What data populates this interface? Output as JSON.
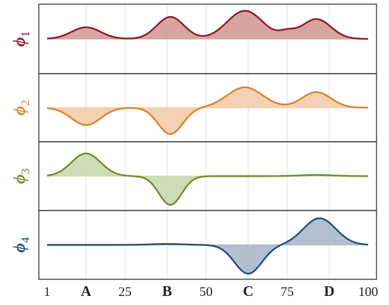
{
  "chart_data": {
    "type": "area",
    "x_range": [
      1,
      100
    ],
    "grid": true,
    "x_ticks": [
      {
        "value": 1,
        "label": "1",
        "bold": false
      },
      {
        "value": 13,
        "label": "A",
        "bold": true
      },
      {
        "value": 25,
        "label": "25",
        "bold": false
      },
      {
        "value": 38,
        "label": "B",
        "bold": true
      },
      {
        "value": 50,
        "label": "50",
        "bold": false
      },
      {
        "value": 63,
        "label": "C",
        "bold": true
      },
      {
        "value": 75,
        "label": "75",
        "bold": false
      },
      {
        "value": 88,
        "label": "D",
        "bold": true
      },
      {
        "value": 100,
        "label": "100",
        "bold": false
      }
    ],
    "series": [
      {
        "symbol": "ϕ",
        "subscript": "1",
        "color": "#8b1a22",
        "fill": "#d39a98",
        "ylim": [
          -1,
          1
        ],
        "bumps": [
          {
            "center": 13,
            "width": 4.5,
            "amp": 0.38
          },
          {
            "center": 39,
            "width": 4.2,
            "amp": 0.72
          },
          {
            "center": 62,
            "width": 5.5,
            "amp": 0.92
          },
          {
            "center": 75,
            "width": 2.5,
            "amp": 0.18
          },
          {
            "center": 84,
            "width": 4.5,
            "amp": 0.65
          }
        ]
      },
      {
        "symbol": "ϕ",
        "subscript": "2",
        "color": "#d9822b",
        "fill": "#f2ccaa",
        "ylim": [
          -1,
          1
        ],
        "bumps": [
          {
            "center": 13,
            "width": 4.5,
            "amp": -0.58
          },
          {
            "center": 39,
            "width": 3.8,
            "amp": -0.88
          },
          {
            "center": 62,
            "width": 5.5,
            "amp": 0.68
          },
          {
            "center": 84,
            "width": 4.5,
            "amp": 0.52
          }
        ]
      },
      {
        "symbol": "ϕ",
        "subscript": "3",
        "color": "#6b8e23",
        "fill": "#cad8b0",
        "ylim": [
          -1,
          1
        ],
        "bumps": [
          {
            "center": 13,
            "width": 4.5,
            "amp": 0.75
          },
          {
            "center": 39,
            "width": 3.5,
            "amp": -0.95
          },
          {
            "center": 84,
            "width": 5,
            "amp": 0.04
          }
        ]
      },
      {
        "symbol": "ϕ",
        "subscript": "4",
        "color": "#1f4e79",
        "fill": "#a9b8c9",
        "ylim": [
          -1,
          1
        ],
        "bumps": [
          {
            "center": 38,
            "width": 5,
            "amp": 0.03
          },
          {
            "center": 63,
            "width": 4.2,
            "amp": -0.95
          },
          {
            "center": 85,
            "width": 5,
            "amp": 0.88
          }
        ]
      }
    ]
  }
}
